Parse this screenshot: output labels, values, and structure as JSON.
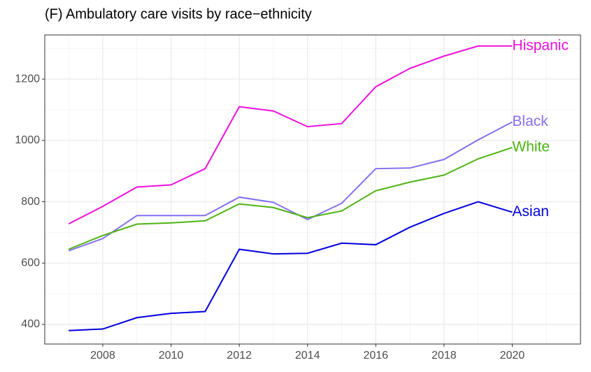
{
  "chart_data": {
    "type": "line",
    "title": "(F) Ambulatory care visits by race−ethnicity",
    "x": [
      2007,
      2008,
      2009,
      2010,
      2011,
      2012,
      2013,
      2014,
      2015,
      2016,
      2017,
      2018,
      2019,
      2020
    ],
    "series": [
      {
        "name": "Hispanic",
        "color": "#ee10dd",
        "values": [
          728,
          785,
          848,
          855,
          908,
          1110,
          1096,
          1045,
          1055,
          1175,
          1235,
          1275,
          1308,
          1308
        ]
      },
      {
        "name": "Black",
        "color": "#8470f0",
        "values": [
          640,
          680,
          755,
          755,
          755,
          815,
          798,
          742,
          795,
          908,
          910,
          938,
          1002,
          1060
        ]
      },
      {
        "name": "White",
        "color": "#4db312",
        "values": [
          645,
          690,
          727,
          731,
          738,
          793,
          781,
          748,
          770,
          836,
          864,
          887,
          940,
          977
        ]
      },
      {
        "name": "Asian",
        "color": "#0000dd",
        "values": [
          380,
          385,
          422,
          436,
          442,
          645,
          630,
          632,
          665,
          660,
          717,
          762,
          800,
          766
        ]
      }
    ],
    "xlim": [
      2006.3,
      2022
    ],
    "ylim": [
      336,
      1344
    ],
    "xticks": [
      2008,
      2010,
      2012,
      2014,
      2016,
      2018,
      2020
    ],
    "yticks": [
      400,
      600,
      800,
      1000,
      1200
    ],
    "grid": true
  }
}
